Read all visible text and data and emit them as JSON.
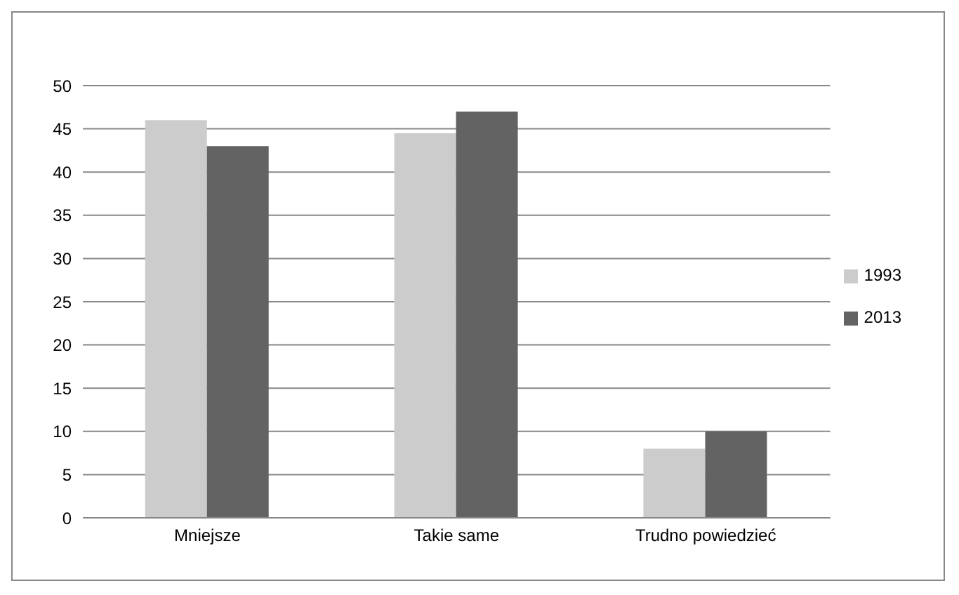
{
  "chart_data": {
    "type": "bar",
    "categories": [
      "Mniejsze",
      "Takie same",
      "Trudno powiedzieć"
    ],
    "series": [
      {
        "name": "1993",
        "color": "#cccccc",
        "values": [
          46,
          44.5,
          8
        ]
      },
      {
        "name": "2013",
        "color": "#636363",
        "values": [
          43,
          47,
          10
        ]
      }
    ],
    "ylim": [
      0,
      50
    ],
    "yticks": [
      0,
      5,
      10,
      15,
      20,
      25,
      30,
      35,
      40,
      45,
      50
    ],
    "grid": "y",
    "legend": "right"
  }
}
